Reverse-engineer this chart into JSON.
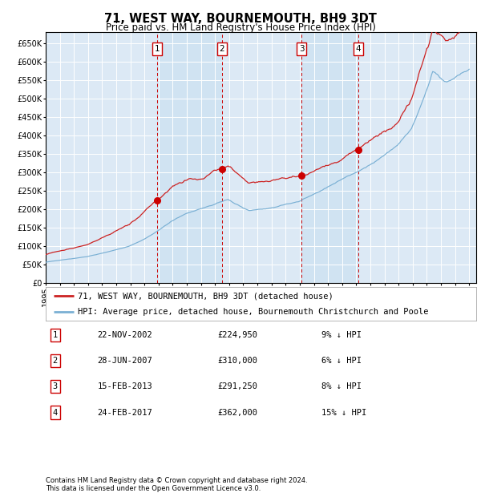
{
  "title": "71, WEST WAY, BOURNEMOUTH, BH9 3DT",
  "subtitle": "Price paid vs. HM Land Registry's House Price Index (HPI)",
  "background_color": "#ffffff",
  "plot_background_color": "#dce9f5",
  "grid_color": "#ffffff",
  "hpi_line_color": "#7ab0d4",
  "price_line_color": "#cc2222",
  "sale_marker_color": "#cc0000",
  "vline_color": "#cc0000",
  "ylim": [
    0,
    680000
  ],
  "ytick_vals": [
    0,
    50000,
    100000,
    150000,
    200000,
    250000,
    300000,
    350000,
    400000,
    450000,
    500000,
    550000,
    600000,
    650000
  ],
  "ytick_labels": [
    "£0",
    "£50K",
    "£100K",
    "£150K",
    "£200K",
    "£250K",
    "£300K",
    "£350K",
    "£400K",
    "£450K",
    "£500K",
    "£550K",
    "£600K",
    "£650K"
  ],
  "xmin": 1995,
  "xmax": 2025.5,
  "sales": [
    {
      "label": "1",
      "date_x": 2002.9,
      "price": 224950,
      "date_str": "22-NOV-2002",
      "price_str": "£224,950",
      "pct_str": "9% ↓ HPI"
    },
    {
      "label": "2",
      "date_x": 2007.49,
      "price": 310000,
      "date_str": "28-JUN-2007",
      "price_str": "£310,000",
      "pct_str": "6% ↓ HPI"
    },
    {
      "label": "3",
      "date_x": 2013.12,
      "price": 291250,
      "date_str": "15-FEB-2013",
      "price_str": "£291,250",
      "pct_str": "8% ↓ HPI"
    },
    {
      "label": "4",
      "date_x": 2017.15,
      "price": 362000,
      "date_str": "24-FEB-2017",
      "price_str": "£362,000",
      "pct_str": "15% ↓ HPI"
    }
  ],
  "legend_line1": "71, WEST WAY, BOURNEMOUTH, BH9 3DT (detached house)",
  "legend_line2": "HPI: Average price, detached house, Bournemouth Christchurch and Poole",
  "footer1": "Contains HM Land Registry data © Crown copyright and database right 2024.",
  "footer2": "This data is licensed under the Open Government Licence v3.0.",
  "title_fontsize": 10.5,
  "subtitle_fontsize": 8.5,
  "tick_fontsize": 7,
  "legend_fontsize": 7.5,
  "table_fontsize": 7.5,
  "footer_fontsize": 6
}
